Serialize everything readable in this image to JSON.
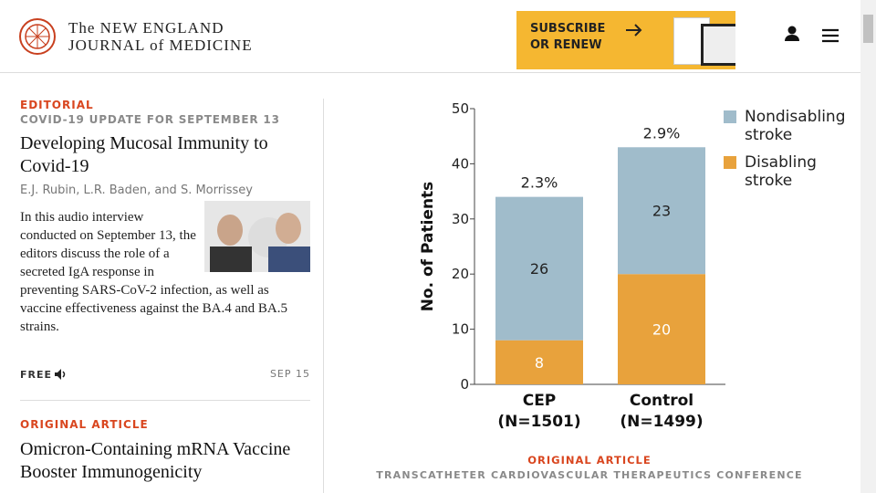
{
  "header": {
    "logo_lines": [
      "The NEW ENGLAND",
      "JOURNAL of MEDICINE"
    ],
    "subscribe_lines": [
      "SUBSCRIBE",
      "OR RENEW"
    ]
  },
  "articles": [
    {
      "kicker": "EDITORIAL",
      "subkicker": "COVID-19 UPDATE FOR SEPTEMBER 13",
      "title": "Developing Mucosal Immunity to Covid-19",
      "authors": "E.J. Rubin, L.R. Baden, and S. Morrissey",
      "body": "In this audio interview conducted on September 13, the editors discuss the role of a secreted IgA response in preventing SARS-CoV-2 infection, as well as vaccine effectiveness against the BA.4 and BA.5 strains.",
      "access": "FREE",
      "date": "SEP 15"
    },
    {
      "kicker": "ORIGINAL ARTICLE",
      "title": "Omicron-Containing mRNA Vaccine Booster Immunogenicity"
    }
  ],
  "chart_data": {
    "type": "stacked-bar",
    "categories": [
      "CEP\n(N=1501)",
      "Control\n(N=1499)"
    ],
    "series": [
      {
        "name": "Disabling stroke",
        "color": "#e8a23c",
        "values": [
          8,
          20
        ]
      },
      {
        "name": "Nondisabling stroke",
        "color": "#a0bccb",
        "values": [
          26,
          23
        ]
      }
    ],
    "bar_annotations": [
      "2.3%",
      "2.9%"
    ],
    "ylabel": "No. of Patients",
    "ylim": [
      0,
      50
    ],
    "yticks": [
      0,
      10,
      20,
      30,
      40,
      50
    ]
  },
  "chart_caption": {
    "kicker": "ORIGINAL ARTICLE",
    "source": "TRANSCATHETER CARDIOVASCULAR THERAPEUTICS CONFERENCE"
  }
}
